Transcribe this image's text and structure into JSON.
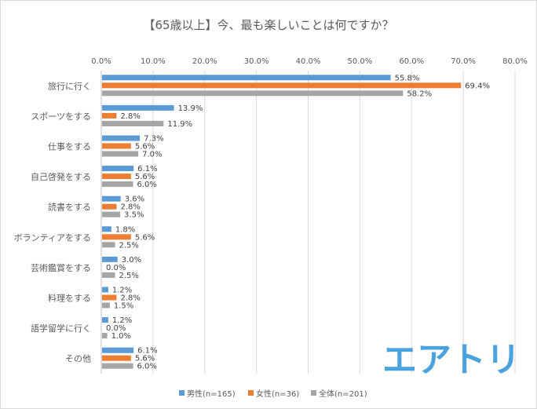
{
  "chart_data": {
    "type": "bar",
    "orientation": "horizontal",
    "title": "【65歳以上】今、最も楽しいことは何ですか？",
    "categories": [
      "旅行に行く",
      "スポーツをする",
      "仕事をする",
      "自己啓発をする",
      "読書をする",
      "ボランティアをする",
      "芸術鑑賞をする",
      "料理をする",
      "語学留学に行く",
      "その他"
    ],
    "series": [
      {
        "name": "男性(n=165)",
        "color": "#5b9bd5",
        "values": [
          55.8,
          13.9,
          7.3,
          6.1,
          3.6,
          1.8,
          3.0,
          1.2,
          1.2,
          6.1
        ]
      },
      {
        "name": "女性(n=36)",
        "color": "#ed7d31",
        "values": [
          69.4,
          2.8,
          5.6,
          5.6,
          2.8,
          5.6,
          0.0,
          2.8,
          0.0,
          5.6
        ]
      },
      {
        "name": "全体(n=201)",
        "color": "#a5a5a5",
        "values": [
          58.2,
          11.9,
          7.0,
          6.0,
          3.5,
          2.5,
          2.5,
          1.5,
          1.0,
          6.0
        ]
      }
    ],
    "xlim": [
      0,
      80
    ],
    "xticks": [
      "0.0%",
      "10.0%",
      "20.0%",
      "30.0%",
      "40.0%",
      "50.0%",
      "60.0%",
      "70.0%",
      "80.0%"
    ],
    "value_format": "percent, 1 decimal",
    "grid": "vertical",
    "legend": "bottom"
  },
  "logo": {
    "text": "エアトリ",
    "color": "#4aa3df"
  }
}
